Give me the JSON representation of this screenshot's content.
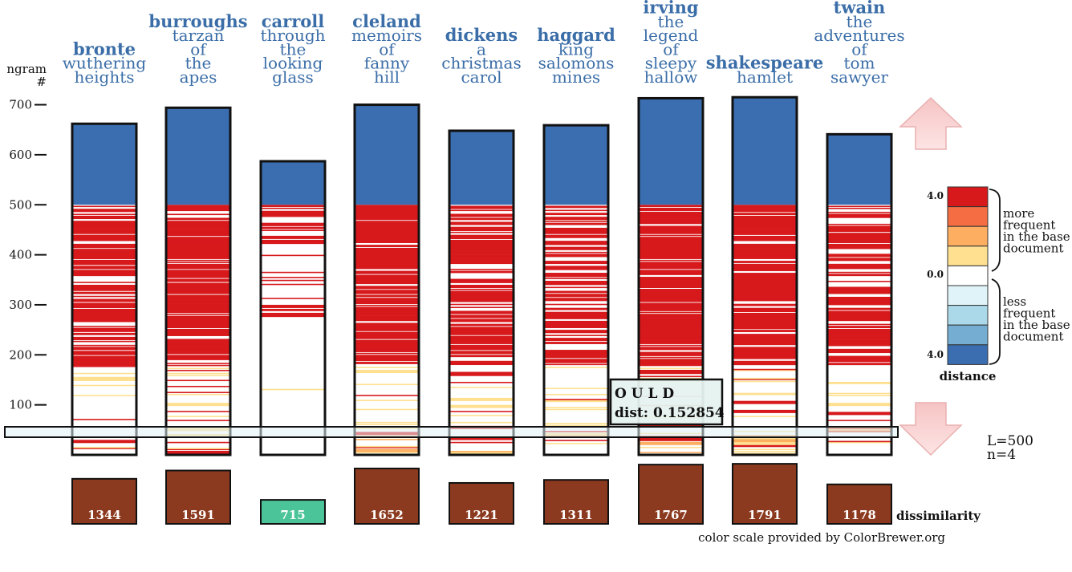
{
  "chart_data": {
    "type": "bar",
    "y_axis": {
      "label_line1": "ngram",
      "label_line2": "#",
      "ticks": [
        100,
        200,
        300,
        400,
        500,
        600,
        700
      ],
      "ylim": [
        0,
        720
      ]
    },
    "documents": [
      {
        "author": "bronte",
        "title_lines": [
          "wuthering",
          "heights"
        ],
        "total_ngrams": 662,
        "dissimilarity": 1344,
        "density": 0.75
      },
      {
        "author": "burroughs",
        "title_lines": [
          "tarzan",
          "of",
          "the",
          "apes"
        ],
        "total_ngrams": 694,
        "dissimilarity": 1591,
        "density": 0.85
      },
      {
        "author": "carroll",
        "title_lines": [
          "through",
          "the",
          "looking",
          "glass"
        ],
        "total_ngrams": 587,
        "dissimilarity": 715,
        "density": 0.35
      },
      {
        "author": "cleland",
        "title_lines": [
          "memoirs",
          "of",
          "fanny",
          "hill"
        ],
        "total_ngrams": 700,
        "dissimilarity": 1652,
        "density": 0.88
      },
      {
        "author": "dickens",
        "title_lines": [
          "a",
          "christmas",
          "carol"
        ],
        "total_ngrams": 648,
        "dissimilarity": 1221,
        "density": 0.7
      },
      {
        "author": "haggard",
        "title_lines": [
          "king",
          "salomons",
          "mines"
        ],
        "total_ngrams": 659,
        "dissimilarity": 1311,
        "density": 0.72
      },
      {
        "author": "irving",
        "title_lines": [
          "the",
          "legend",
          "of",
          "sleepy",
          "hallow"
        ],
        "total_ngrams": 713,
        "dissimilarity": 1767,
        "density": 0.92
      },
      {
        "author": "shakespeare",
        "title_lines": [
          "hamlet"
        ],
        "total_ngrams": 715,
        "dissimilarity": 1791,
        "density": 0.95
      },
      {
        "author": "twain",
        "title_lines": [
          "the",
          "adventures",
          "of",
          "tom",
          "sawyer"
        ],
        "total_ngrams": 641,
        "dissimilarity": 1178,
        "density": 0.65
      }
    ],
    "base_length": 500,
    "dissimilarity_label": "dissimilarity",
    "legend": {
      "title": "distance",
      "max_label": "4.0",
      "zero_label": "0.0",
      "min_label": "4.0",
      "more_lines": [
        "more",
        "frequent",
        "in the base",
        "document"
      ],
      "less_lines": [
        "less",
        "frequent",
        "in the base",
        "document"
      ],
      "colors": [
        "#d7191c",
        "#f46d43",
        "#fdae61",
        "#fee090",
        "#ffffff",
        "#e0f3f8",
        "#abd9e9",
        "#74add1",
        "#3b6eb0"
      ]
    },
    "colors": {
      "blue": "#3b6eb0",
      "red": "#d7191c",
      "orange": "#fdae61",
      "yellow": "#fee090",
      "brown": "#8b3a1f",
      "teal": "#4cc49a"
    }
  },
  "tooltip": {
    "line1": "O U L D",
    "line2": "dist: 0.152854"
  },
  "params": {
    "L": "L=500",
    "n": "n=4"
  },
  "credit": "color scale provided by ColorBrewer.org"
}
